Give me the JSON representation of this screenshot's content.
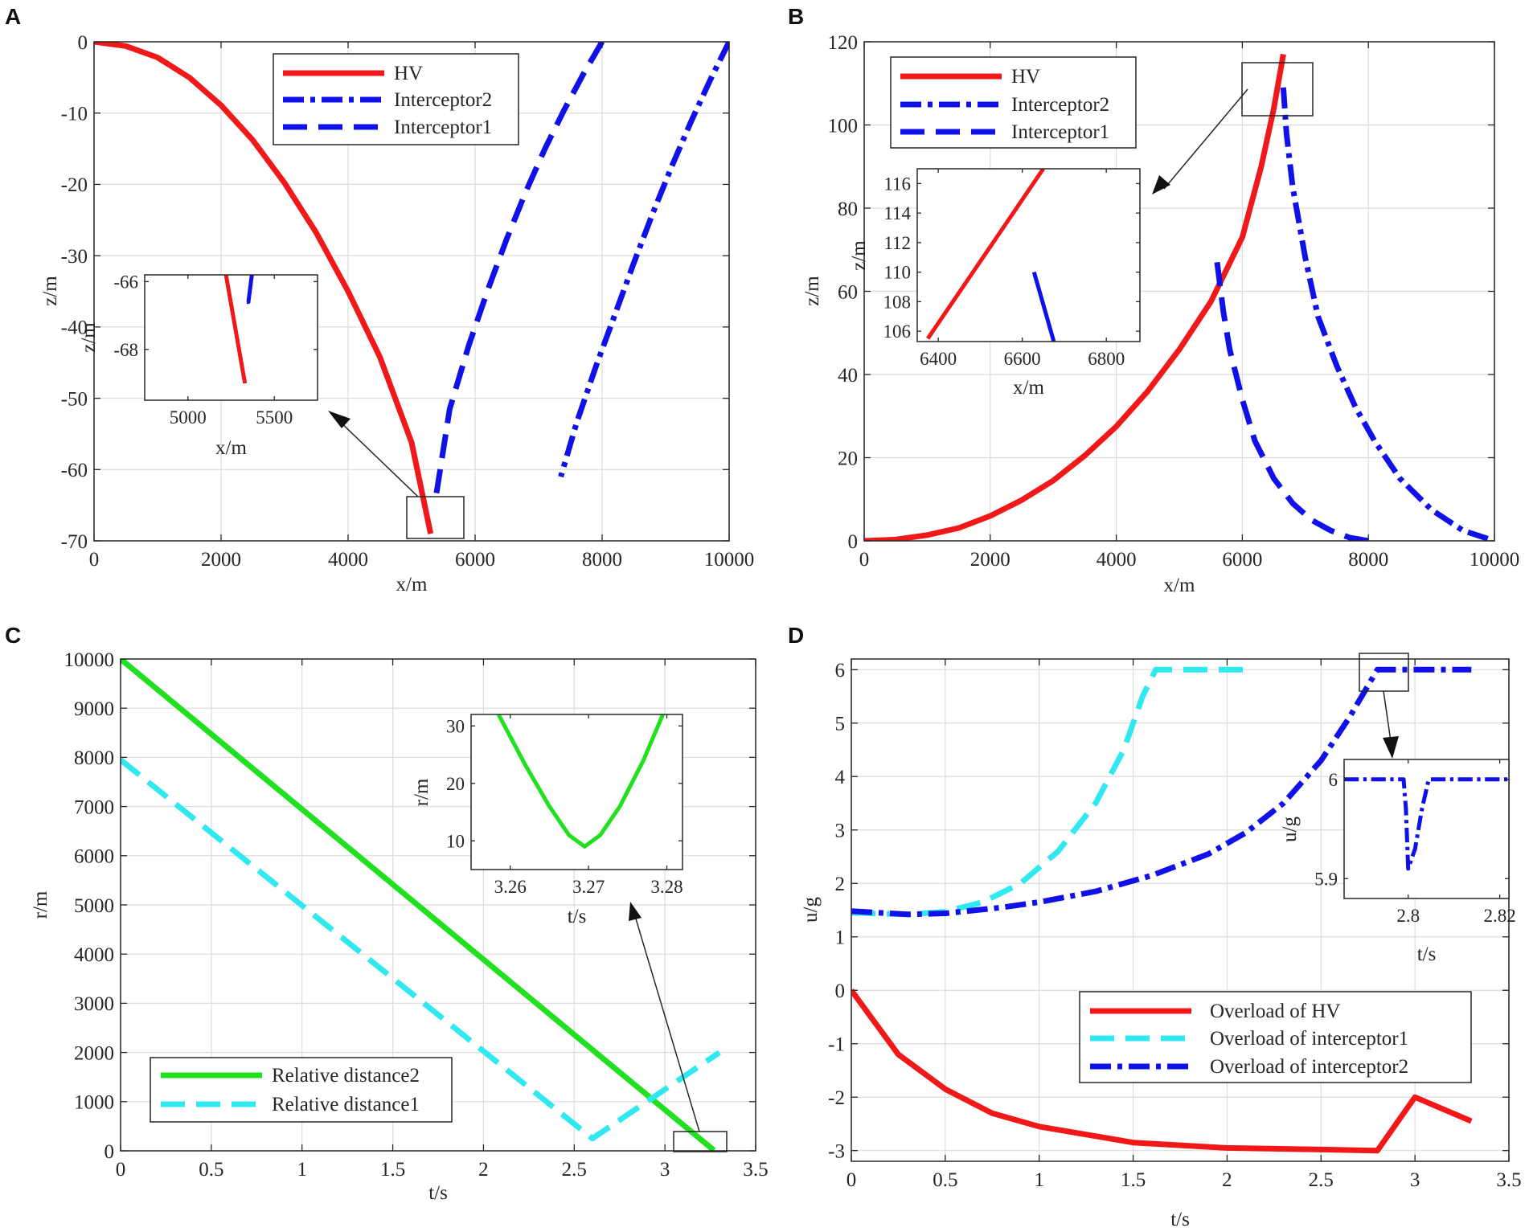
{
  "figure": {
    "colors": {
      "hv": "#f01818",
      "interceptor": "#1010e8",
      "cyan": "#30e8f0",
      "green": "#20e020",
      "grid": "#dcdcdc",
      "axis": "#262626"
    }
  },
  "chart_data": [
    {
      "panel": "A",
      "type": "line",
      "xlabel": "x/m",
      "ylabel": "z/m",
      "xlim": [
        0,
        10000
      ],
      "ylim": [
        -70,
        0
      ],
      "xticks": [
        0,
        2000,
        4000,
        6000,
        8000,
        10000
      ],
      "yticks": [
        0,
        -10,
        -20,
        -30,
        -40,
        -50,
        -60,
        -70
      ],
      "grid": true,
      "legend_position": "top-center",
      "series": [
        {
          "name": "HV",
          "style": "solid",
          "color": "#f01818",
          "x": [
            0,
            500,
            1000,
            1500,
            2000,
            2500,
            3000,
            3500,
            4000,
            4500,
            5000,
            5300
          ],
          "y": [
            0,
            -0.6,
            -2.2,
            -5,
            -8.9,
            -13.8,
            -19.8,
            -26.8,
            -35,
            -44.2,
            -56.2,
            -69
          ]
        },
        {
          "name": "Interceptor2",
          "style": "dashdot",
          "color": "#1010e8",
          "x": [
            10000,
            9700,
            9400,
            9100,
            8800,
            8500,
            8200,
            7900,
            7600,
            7350
          ],
          "y": [
            0,
            -5.4,
            -11.2,
            -17.4,
            -24,
            -31,
            -38.3,
            -45.6,
            -53.4,
            -61
          ]
        },
        {
          "name": "Interceptor1",
          "style": "dashed",
          "color": "#1010e8",
          "x": [
            8000,
            7700,
            7400,
            7100,
            6800,
            6500,
            6200,
            5900,
            5600,
            5380
          ],
          "y": [
            0,
            -4.6,
            -9.6,
            -15,
            -21,
            -27.6,
            -34.8,
            -42.6,
            -51.5,
            -64
          ]
        }
      ],
      "inset": {
        "xlabel": "x/m",
        "ylabel": "z/m",
        "xlim": [
          4750,
          5750
        ],
        "ylim": [
          -69.5,
          -65.8
        ],
        "xticks": [
          5000,
          5500
        ],
        "yticks": [
          -66,
          -68
        ],
        "series": [
          {
            "name": "HV",
            "style": "solid",
            "color": "#f01818",
            "x": [
              5220,
              5330
            ],
            "y": [
              -65.8,
              -69
            ]
          },
          {
            "name": "Interceptor1",
            "style": "solid",
            "color": "#1010e8",
            "x": [
              5370,
              5350,
              5340
            ],
            "y": [
              -65.8,
              -66.6,
              -66.6
            ]
          }
        ]
      }
    },
    {
      "panel": "B",
      "type": "line",
      "xlabel": "x/m",
      "ylabel": "z/m",
      "xlim": [
        0,
        10000
      ],
      "ylim": [
        0,
        120
      ],
      "xticks": [
        0,
        2000,
        4000,
        6000,
        8000,
        10000
      ],
      "yticks": [
        0,
        20,
        40,
        60,
        80,
        100,
        120
      ],
      "grid": true,
      "legend_position": "top-left",
      "series": [
        {
          "name": "HV",
          "style": "solid",
          "color": "#f01818",
          "x": [
            0,
            500,
            1000,
            1500,
            2000,
            2500,
            3000,
            3500,
            4000,
            4500,
            5000,
            5500,
            6000,
            6300,
            6500,
            6650
          ],
          "y": [
            0,
            0.3,
            1.4,
            3.1,
            6,
            9.8,
            14.5,
            20.5,
            27.5,
            36,
            46,
            57.5,
            73,
            90,
            104,
            117
          ]
        },
        {
          "name": "Interceptor2",
          "style": "dashdot",
          "color": "#1010e8",
          "x": [
            6650,
            6700,
            6800,
            7000,
            7200,
            7500,
            7800,
            8100,
            8500,
            9000,
            9500,
            10000
          ],
          "y": [
            109,
            98,
            85,
            68,
            54,
            42,
            32,
            24,
            15,
            7.5,
            2.5,
            0
          ]
        },
        {
          "name": "Interceptor1",
          "style": "dashed",
          "color": "#1010e8",
          "x": [
            5600,
            5700,
            5800,
            6000,
            6200,
            6500,
            6800,
            7100,
            7400,
            7700,
            8000
          ],
          "y": [
            67,
            55,
            46,
            34,
            24,
            15,
            9,
            5,
            2.5,
            0.8,
            0
          ]
        }
      ],
      "inset": {
        "xlabel": "x/m",
        "ylabel": "z/m",
        "xlim": [
          6350,
          6880
        ],
        "ylim": [
          105.3,
          117
        ],
        "xticks": [
          6400,
          6600,
          6800
        ],
        "yticks": [
          106,
          108,
          110,
          112,
          114,
          116
        ],
        "series": [
          {
            "name": "HV",
            "style": "solid",
            "color": "#f01818",
            "x": [
              6375,
              6650
            ],
            "y": [
              105.5,
              117
            ]
          },
          {
            "name": "Interceptor2",
            "style": "solid",
            "color": "#1010e8",
            "x": [
              6628,
              6675
            ],
            "y": [
              110,
              105.3
            ]
          }
        ]
      }
    },
    {
      "panel": "C",
      "type": "line",
      "xlabel": "t/s",
      "ylabel": "r/m",
      "xlim": [
        0,
        3.5
      ],
      "ylim": [
        0,
        10000
      ],
      "xticks": [
        0,
        0.5,
        1,
        1.5,
        2,
        2.5,
        3,
        3.5
      ],
      "yticks": [
        0,
        1000,
        2000,
        3000,
        4000,
        5000,
        6000,
        7000,
        8000,
        9000,
        10000
      ],
      "grid": true,
      "legend_position": "bottom-left",
      "series": [
        {
          "name": "Relative distance2",
          "style": "solid",
          "color": "#20e020",
          "x": [
            0,
            3.27
          ],
          "y": [
            10000,
            10
          ]
        },
        {
          "name": "Relative distance1",
          "style": "dashed",
          "color": "#30e8f0",
          "x": [
            0,
            2.6,
            3.3
          ],
          "y": [
            7950,
            250,
            2000
          ]
        }
      ],
      "inset": {
        "xlabel": "t/s",
        "ylabel": "r/m",
        "xlim": [
          3.255,
          3.282
        ],
        "ylim": [
          5,
          32
        ],
        "xticks": [
          3.26,
          3.27,
          3.28
        ],
        "yticks": [
          10,
          20,
          30
        ],
        "series": [
          {
            "name": "Relative distance2",
            "style": "solid",
            "color": "#20e020",
            "x": [
              3.2585,
              3.262,
              3.265,
              3.2675,
              3.2695,
              3.2715,
              3.274,
              3.277,
              3.2795
            ],
            "y": [
              32,
              23,
              16,
              11,
              9,
              11,
              16,
              24,
              32
            ]
          }
        ]
      }
    },
    {
      "panel": "D",
      "type": "line",
      "xlabel": "t/s",
      "ylabel": "u/g",
      "xlim": [
        0,
        3.5
      ],
      "ylim": [
        -3.2,
        6.2
      ],
      "xticks": [
        0,
        0.5,
        1,
        1.5,
        2,
        2.5,
        3,
        3.5
      ],
      "yticks": [
        -3,
        -2,
        -1,
        0,
        1,
        2,
        3,
        4,
        5,
        6
      ],
      "grid": true,
      "legend_position": "bottom-right",
      "series": [
        {
          "name": "Overload of HV",
          "style": "solid",
          "color": "#f01818",
          "x": [
            0,
            0.25,
            0.5,
            0.75,
            1,
            1.5,
            2,
            2.5,
            2.8,
            3,
            3.3
          ],
          "y": [
            0,
            -1.2,
            -1.85,
            -2.3,
            -2.55,
            -2.85,
            -2.95,
            -2.98,
            -3,
            -2,
            -2.45
          ]
        },
        {
          "name": "Overload of interceptor1",
          "style": "dashed",
          "color": "#30e8f0",
          "x": [
            0,
            0.3,
            0.5,
            0.7,
            0.9,
            1.1,
            1.3,
            1.45,
            1.55,
            1.62,
            1.65,
            2.1
          ],
          "y": [
            1.45,
            1.42,
            1.47,
            1.65,
            2,
            2.6,
            3.5,
            4.5,
            5.5,
            6,
            6,
            6
          ]
        },
        {
          "name": "Overload of interceptor2",
          "style": "dashdot",
          "color": "#1010e8",
          "x": [
            0,
            0.3,
            0.5,
            0.8,
            1,
            1.3,
            1.6,
            1.9,
            2.1,
            2.3,
            2.5,
            2.65,
            2.75,
            2.8,
            3.3
          ],
          "y": [
            1.48,
            1.42,
            1.44,
            1.55,
            1.65,
            1.85,
            2.15,
            2.55,
            2.95,
            3.5,
            4.3,
            5.1,
            5.7,
            6,
            6
          ]
        }
      ],
      "inset": {
        "xlabel": "t/s",
        "ylabel": "u/g",
        "xlim": [
          2.786,
          2.822
        ],
        "ylim": [
          5.88,
          6.02
        ],
        "xticks": [
          2.8,
          2.82
        ],
        "yticks": [
          5.9,
          6
        ],
        "series": [
          {
            "name": "Overload of interceptor2",
            "style": "dashdot",
            "color": "#1010e8",
            "x": [
              2.786,
              2.799,
              2.7995,
              2.8,
              2.8015,
              2.803,
              2.8045,
              2.822
            ],
            "y": [
              6,
              6,
              5.97,
              5.91,
              5.93,
              5.97,
              6,
              6
            ]
          }
        ]
      }
    }
  ]
}
